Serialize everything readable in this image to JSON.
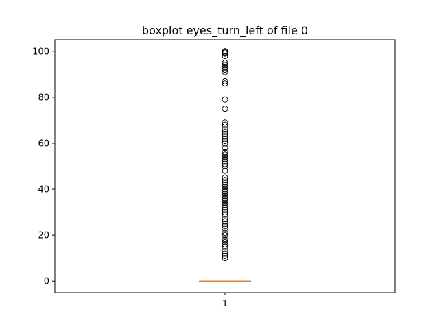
{
  "chart_data": {
    "type": "boxplot",
    "title": "boxplot eyes_turn_left of file 0",
    "xlabel": "",
    "ylabel": "",
    "categories": [
      "1"
    ],
    "ylim": [
      -5,
      105
    ],
    "yticks": [
      0,
      20,
      40,
      60,
      80,
      100
    ],
    "grid": false,
    "series": [
      {
        "q1": 0,
        "median": 0,
        "q3": 0,
        "whisker_low": 0,
        "whisker_high": 0,
        "outliers": [
          100,
          100,
          99.5,
          99,
          98,
          95,
          94,
          93,
          92,
          91,
          87,
          86,
          79,
          75,
          69,
          68,
          66,
          65,
          64,
          63,
          62,
          61,
          60,
          58,
          56,
          55,
          54,
          53,
          52,
          51,
          50,
          48,
          45,
          44,
          43,
          42,
          41,
          40,
          39,
          38,
          37,
          36,
          35,
          34,
          33,
          32,
          31,
          30,
          29,
          27,
          26,
          25,
          24,
          23,
          21,
          20,
          18,
          17,
          16,
          15,
          13,
          12,
          11,
          10
        ]
      }
    ],
    "colors": {
      "median": "#ff7f0e",
      "box": "#000000",
      "outlier": "#000000"
    }
  }
}
